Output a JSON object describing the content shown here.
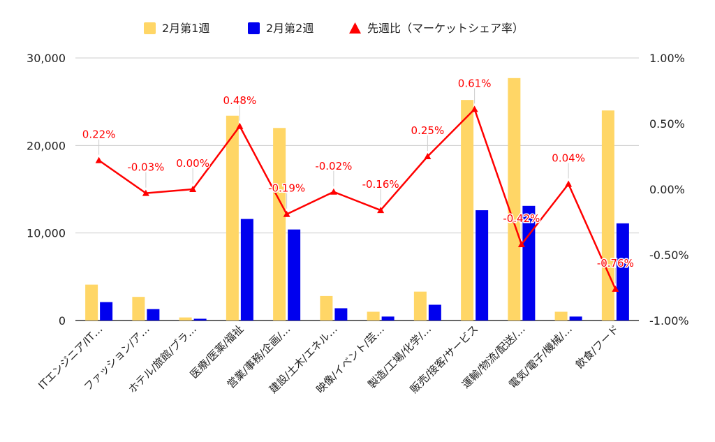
{
  "chart_data": {
    "type": "bar",
    "legend_position": "top",
    "grid": true,
    "categories": [
      "ITエンジニア/IT…",
      "ファッション/ア…",
      "ホテル/旅館/ブラ…",
      "医療/医薬/福祉",
      "営業/事務/企画/…",
      "建設/土木/エネル…",
      "映像/イベント/芸…",
      "製造/工場/化学/…",
      "販売/接客/サービス",
      "運輸/物流/配送/…",
      "電気/電子/機械/…",
      "飲食/フード"
    ],
    "series": [
      {
        "name": "2月第1週",
        "type": "bar",
        "axis": "left",
        "color": "#ffd666",
        "values": [
          4100,
          2700,
          350,
          23400,
          22000,
          2800,
          1000,
          3300,
          25200,
          27700,
          1000,
          24000
        ]
      },
      {
        "name": "2月第2週",
        "type": "bar",
        "axis": "left",
        "color": "#0000ee",
        "values": [
          2100,
          1300,
          200,
          11600,
          10400,
          1400,
          450,
          1800,
          12600,
          13100,
          450,
          11100
        ]
      },
      {
        "name": "先週比（マーケットシェア率）",
        "type": "line",
        "axis": "right",
        "color": "#ff0000",
        "values": [
          0.22,
          -0.03,
          0.0,
          0.48,
          -0.19,
          -0.02,
          -0.16,
          0.25,
          0.61,
          -0.42,
          0.04,
          -0.76
        ],
        "labels": [
          "0.22%",
          "-0.03%",
          "0.00%",
          "0.48%",
          "-0.19%",
          "-0.02%",
          "-0.16%",
          "0.25%",
          "0.61%",
          "-0.42%",
          "0.04%",
          "-0.76%"
        ]
      }
    ],
    "yaxis_left": {
      "min": 0,
      "max": 30000,
      "ticks": [
        0,
        10000,
        20000,
        30000
      ],
      "tick_labels": [
        "0",
        "10,000",
        "20,000",
        "30,000"
      ]
    },
    "yaxis_right": {
      "min": -1.0,
      "max": 1.0,
      "ticks": [
        -1.0,
        -0.5,
        0.0,
        0.5,
        1.0
      ],
      "tick_labels": [
        "-1.00%",
        "-0.50%",
        "0.00%",
        "0.50%",
        "1.00%"
      ]
    }
  }
}
